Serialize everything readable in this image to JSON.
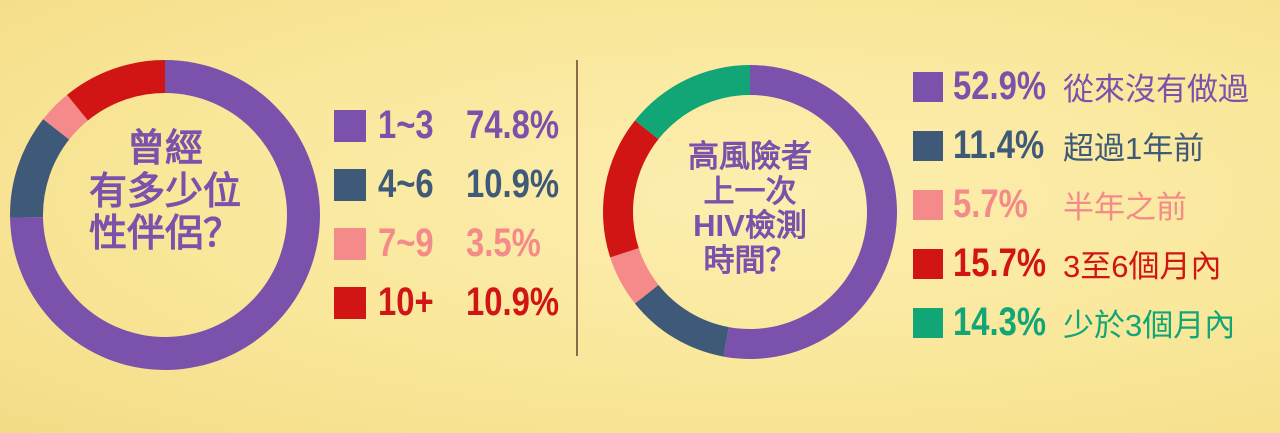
{
  "colors": {
    "purple": "#7b52ab",
    "slate": "#3f5a78",
    "pink": "#f48a8a",
    "red": "#d11414",
    "green": "#12a676",
    "title": "#7b52ab"
  },
  "chart_data": [
    {
      "type": "pie",
      "title": "曾經 有多少位 性伴侶？",
      "title_lines": [
        "曾經",
        "有多少位",
        "性伴侶？"
      ],
      "categories": [
        "1~3",
        "4~6",
        "7~9",
        "10+"
      ],
      "values": [
        74.8,
        10.9,
        3.5,
        10.9
      ],
      "labels": [
        "74.8%",
        "10.9%",
        "3.5%",
        "10.9%"
      ],
      "colors": [
        "#7b52ab",
        "#3f5a78",
        "#f48a8a",
        "#d11414"
      ],
      "legend_placement": "right",
      "style": "donut"
    },
    {
      "type": "pie",
      "title": "高風險者 上一次 HIV檢測 時間？",
      "title_lines": [
        "高風險者",
        "上一次",
        "HIV檢測",
        "時間？"
      ],
      "categories": [
        "從來沒有做過",
        "超過1年前",
        "半年之前",
        "3至6個月內",
        "少於3個月內"
      ],
      "values": [
        52.9,
        11.4,
        5.7,
        15.7,
        14.3
      ],
      "labels": [
        "52.9%",
        "11.4%",
        "5.7%",
        "15.7%",
        "14.3%"
      ],
      "colors": [
        "#7b52ab",
        "#3f5a78",
        "#f48a8a",
        "#d11414",
        "#12a676"
      ],
      "legend_placement": "right",
      "style": "donut"
    }
  ]
}
